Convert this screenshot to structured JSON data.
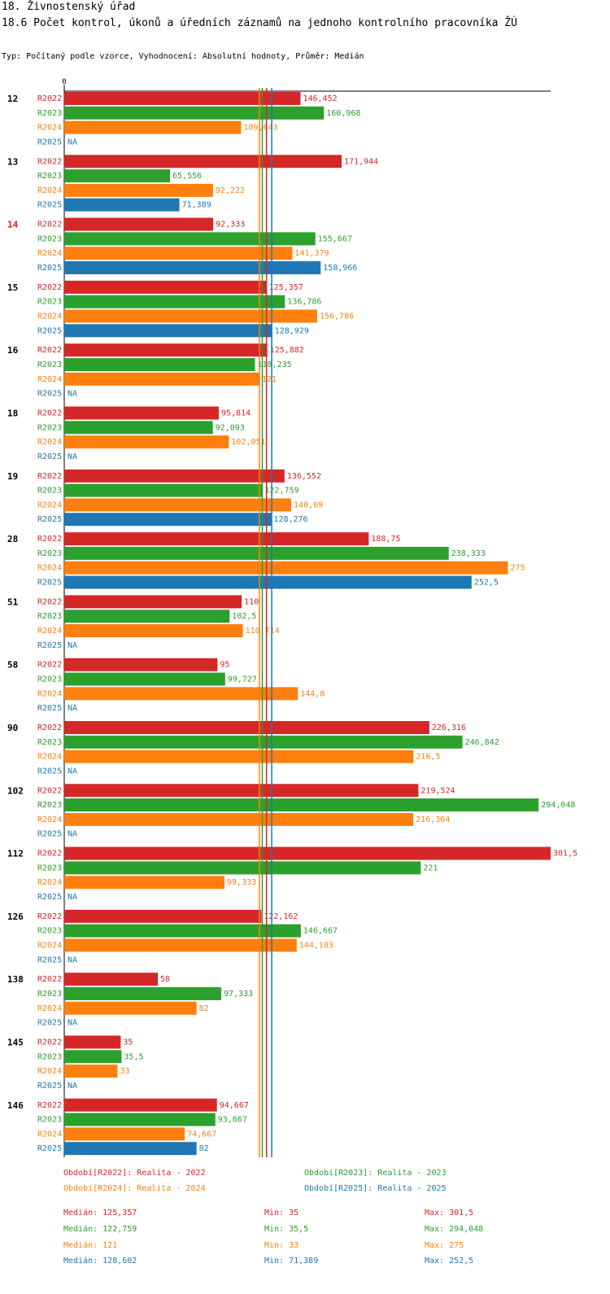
{
  "header": {
    "title": "18. Živnostenský úřad",
    "subtitle": "18.6 Počet kontrol, úkonů a úředních záznamů na jednoho kontrolního pracovníka ŽÚ",
    "type_line": "Typ: Počítaný podle vzorce, Vyhodnocení: Absolutní hodnoty, Průměr: Medián"
  },
  "colors": {
    "R2022": "#d62728",
    "R2023": "#2ca02c",
    "R2024": "#ff7f0e",
    "R2025": "#1f77b4",
    "highlight_group": "#e8191e",
    "axis": "#000000"
  },
  "chart_data": {
    "type": "bar",
    "orientation": "horizontal",
    "axis_zero_label": "0",
    "xlim": [
      0,
      301.5
    ],
    "series_names": [
      "R2022",
      "R2023",
      "R2024",
      "R2025"
    ],
    "na_label": "NA",
    "highlight_group": "14",
    "groups": [
      {
        "label": "12",
        "values": [
          146.452,
          160.968,
          109.643,
          null
        ],
        "labels": [
          "146,452",
          "160,968",
          "109,643",
          "NA"
        ]
      },
      {
        "label": "13",
        "values": [
          171.944,
          65.556,
          92.222,
          71.389
        ],
        "labels": [
          "171,944",
          "65,556",
          "92,222",
          "71,389"
        ]
      },
      {
        "label": "14",
        "values": [
          92.333,
          155.667,
          141.379,
          158.966
        ],
        "labels": [
          "92,333",
          "155,667",
          "141,379",
          "158,966"
        ]
      },
      {
        "label": "15",
        "values": [
          125.357,
          136.786,
          156.786,
          128.929
        ],
        "labels": [
          "125,357",
          "136,786",
          "156,786",
          "128,929"
        ]
      },
      {
        "label": "16",
        "values": [
          125.882,
          118.235,
          121,
          null
        ],
        "labels": [
          "125,882",
          "118,235",
          "121",
          "NA"
        ]
      },
      {
        "label": "18",
        "values": [
          95.814,
          92.093,
          102.051,
          null
        ],
        "labels": [
          "95,814",
          "92,093",
          "102,051",
          "NA"
        ]
      },
      {
        "label": "19",
        "values": [
          136.552,
          122.759,
          140.69,
          128.276
        ],
        "labels": [
          "136,552",
          "122,759",
          "140,69",
          "128,276"
        ]
      },
      {
        "label": "28",
        "values": [
          188.75,
          238.333,
          275,
          252.5
        ],
        "labels": [
          "188,75",
          "238,333",
          "275",
          "252,5"
        ]
      },
      {
        "label": "51",
        "values": [
          110,
          102.5,
          110.714,
          null
        ],
        "labels": [
          "110",
          "102,5",
          "110,714",
          "NA"
        ]
      },
      {
        "label": "58",
        "values": [
          95,
          99.727,
          144.8,
          null
        ],
        "labels": [
          "95",
          "99,727",
          "144,8",
          "NA"
        ]
      },
      {
        "label": "90",
        "values": [
          226.316,
          246.842,
          216.5,
          null
        ],
        "labels": [
          "226,316",
          "246,842",
          "216,5",
          "NA"
        ]
      },
      {
        "label": "102",
        "values": [
          219.524,
          294.048,
          216.364,
          null
        ],
        "labels": [
          "219,524",
          "294,048",
          "216,364",
          "NA"
        ]
      },
      {
        "label": "112",
        "values": [
          301.5,
          221,
          99.333,
          null
        ],
        "labels": [
          "301,5",
          "221",
          "99,333",
          "NA"
        ]
      },
      {
        "label": "126",
        "values": [
          122.162,
          146.667,
          144.103,
          null
        ],
        "labels": [
          "122,162",
          "146,667",
          "144,103",
          "NA"
        ]
      },
      {
        "label": "138",
        "values": [
          58,
          97.333,
          82,
          null
        ],
        "labels": [
          "58",
          "97,333",
          "82",
          "NA"
        ]
      },
      {
        "label": "145",
        "values": [
          35,
          35.5,
          33,
          null
        ],
        "labels": [
          "35",
          "35,5",
          "33",
          "NA"
        ]
      },
      {
        "label": "146",
        "values": [
          94.667,
          93.667,
          74.667,
          82
        ],
        "labels": [
          "94,667",
          "93,667",
          "74,667",
          "82"
        ]
      }
    ],
    "medians": [
      125.357,
      122.759,
      121,
      128.602
    ]
  },
  "legend": {
    "periods": [
      "Období[R2022]: Realita - 2022",
      "Období[R2023]: Realita - 2023",
      "Období[R2024]: Realita - 2024",
      "Období[R2025]: Realita - 2025"
    ],
    "stats": [
      {
        "median": "Medián: 125,357",
        "min": "Min: 35",
        "max": "Max: 301,5"
      },
      {
        "median": "Medián: 122,759",
        "min": "Min: 35,5",
        "max": "Max: 294,048"
      },
      {
        "median": "Medián: 121",
        "min": "Min: 33",
        "max": "Max: 275"
      },
      {
        "median": "Medián: 128,602",
        "min": "Min: 71,389",
        "max": "Max: 252,5"
      }
    ]
  }
}
